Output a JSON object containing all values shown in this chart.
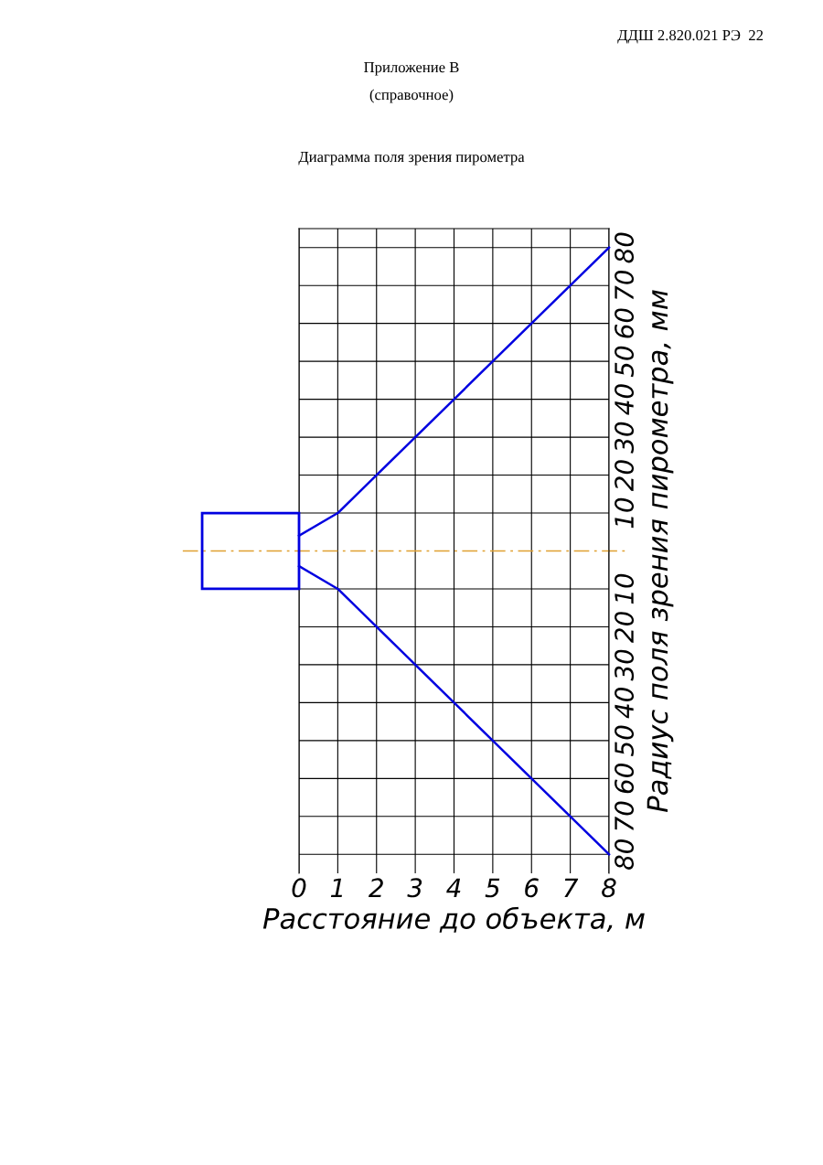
{
  "chart_data": {
    "type": "line",
    "title": "Диаграмма поля зрения пирометра",
    "annotations": [
      "ДДШ 2.820.021 РЭ  22",
      "Приложение В",
      "(справочное)"
    ],
    "xlabel": "Расстояние до объекта, м",
    "ylabel": "Радиус поля зрения пирометра, мм",
    "x": [
      0,
      1,
      8
    ],
    "series": [
      {
        "color": "#0000e0",
        "values": [
          4,
          10,
          80
        ]
      },
      {
        "color": "#0000e0",
        "values": [
          -4,
          -10,
          -80
        ]
      }
    ],
    "xlim": [
      0,
      8
    ],
    "xticks": [
      0,
      1,
      2,
      3,
      4,
      5,
      6,
      7,
      8
    ],
    "ylim": [
      -85,
      85
    ],
    "yticks": [
      {
        "value": -80,
        "label": "80"
      },
      {
        "value": -70,
        "label": "70"
      },
      {
        "value": -60,
        "label": "60"
      },
      {
        "value": -50,
        "label": "50"
      },
      {
        "value": -40,
        "label": "40"
      },
      {
        "value": -30,
        "label": "30"
      },
      {
        "value": -20,
        "label": "20"
      },
      {
        "value": -10,
        "label": "10"
      },
      {
        "value": 10,
        "label": "10"
      },
      {
        "value": 20,
        "label": "20"
      },
      {
        "value": 30,
        "label": "30"
      },
      {
        "value": 40,
        "label": "40"
      },
      {
        "value": 50,
        "label": "50"
      },
      {
        "value": 60,
        "label": "60"
      },
      {
        "value": 70,
        "label": "70"
      },
      {
        "value": 80,
        "label": "80"
      }
    ],
    "ref_lines": [
      {
        "axis": "y",
        "value": 0,
        "color": "#e0a030",
        "line_style": "dashed"
      }
    ],
    "grid": true,
    "marker": "none",
    "line_style": "solid"
  }
}
